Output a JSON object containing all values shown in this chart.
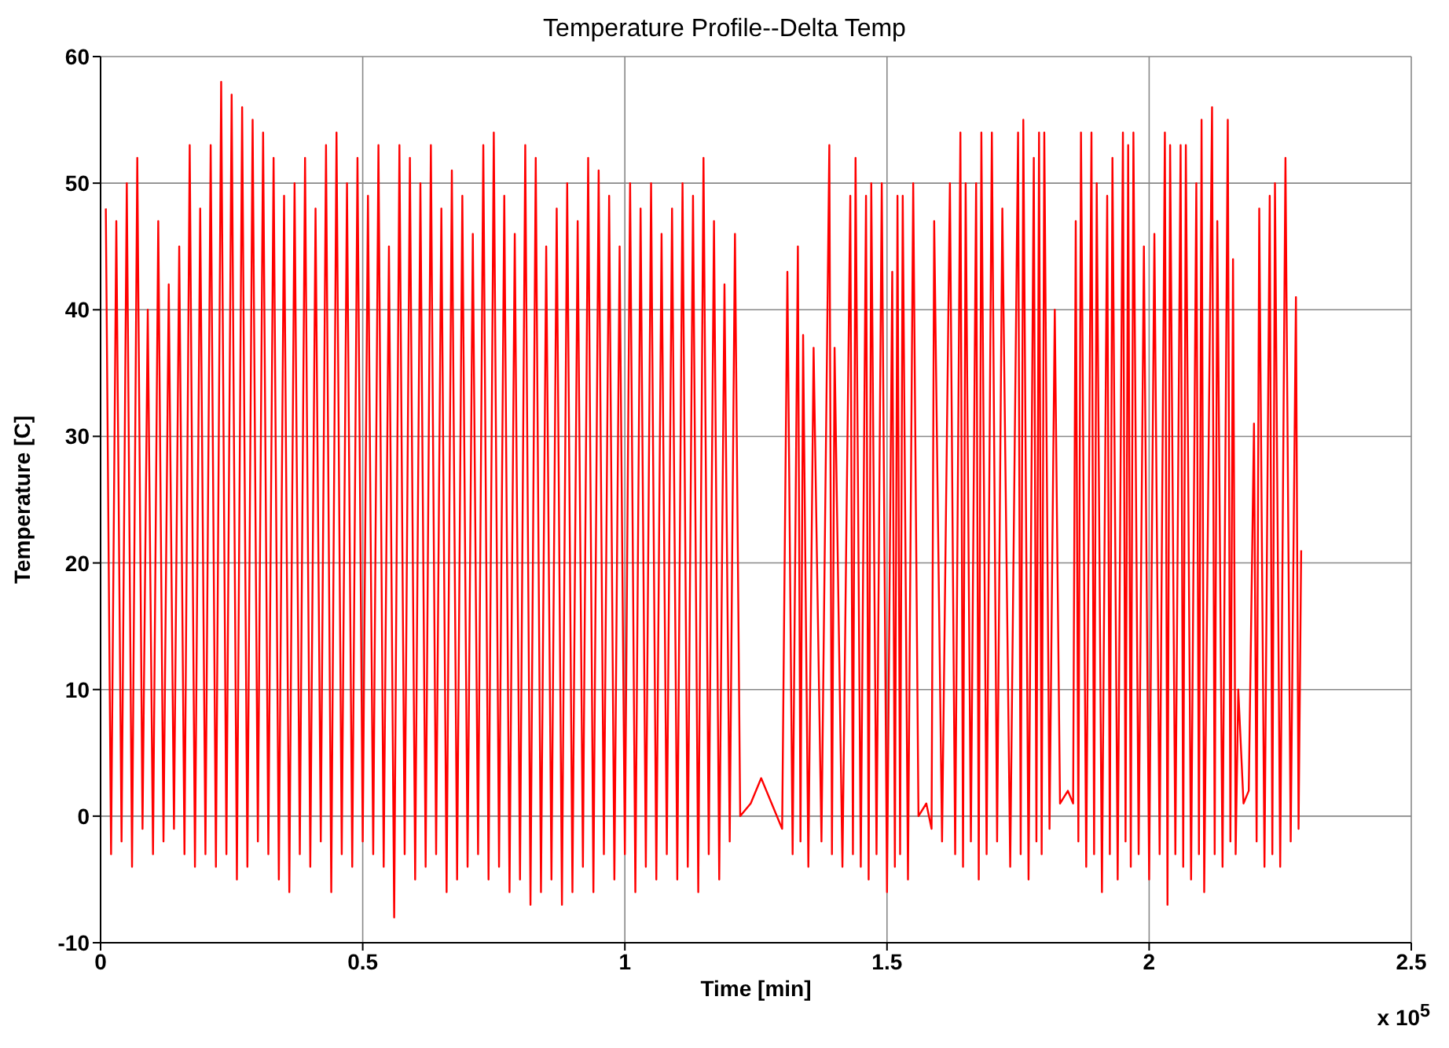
{
  "chart_data": {
    "type": "line",
    "title": "Temperature Profile--Delta Temp",
    "xlabel": "Time [min]",
    "ylabel": "Temperature [C]",
    "annotations": [
      "x 10$^{5}$"
    ],
    "xlim": [
      0,
      2.5
    ],
    "xticks": [
      0,
      0.5,
      1,
      1.5,
      2,
      2.5
    ],
    "ylim": [
      -10,
      60
    ],
    "yticks": [
      -10,
      0,
      10,
      20,
      30,
      40,
      50,
      60
    ],
    "grid": true,
    "marker": "none",
    "line_style": "solid",
    "series": [
      {
        "color": "#ff0000",
        "x": [
          0.01,
          0.02,
          0.03,
          0.04,
          0.05,
          0.06,
          0.07,
          0.08,
          0.09,
          0.1,
          0.11,
          0.12,
          0.13,
          0.14,
          0.15,
          0.16,
          0.17,
          0.18,
          0.19,
          0.2,
          0.21,
          0.22,
          0.23,
          0.24,
          0.25,
          0.26,
          0.27,
          0.28,
          0.29,
          0.3,
          0.31,
          0.32,
          0.33,
          0.34,
          0.35,
          0.36,
          0.37,
          0.38,
          0.39,
          0.4,
          0.41,
          0.42,
          0.43,
          0.44,
          0.45,
          0.46,
          0.47,
          0.48,
          0.49,
          0.5,
          0.51,
          0.52,
          0.53,
          0.54,
          0.55,
          0.56,
          0.57,
          0.58,
          0.59,
          0.6,
          0.61,
          0.62,
          0.63,
          0.64,
          0.65,
          0.66,
          0.67,
          0.68,
          0.69,
          0.7,
          0.71,
          0.72,
          0.73,
          0.74,
          0.75,
          0.76,
          0.77,
          0.78,
          0.79,
          0.8,
          0.81,
          0.82,
          0.83,
          0.84,
          0.85,
          0.86,
          0.87,
          0.88,
          0.89,
          0.9,
          0.91,
          0.92,
          0.93,
          0.94,
          0.95,
          0.96,
          0.97,
          0.98,
          0.99,
          1,
          1.01,
          1.02,
          1.03,
          1.04,
          1.05,
          1.06,
          1.07,
          1.08,
          1.09,
          1.1,
          1.11,
          1.12,
          1.13,
          1.14,
          1.15,
          1.16,
          1.17,
          1.18,
          1.19,
          1.2,
          1.21,
          1.22,
          1.24,
          1.26,
          1.28,
          1.3,
          1.31,
          1.32,
          1.33,
          1.335,
          1.34,
          1.35,
          1.36,
          1.375,
          1.39,
          1.395,
          1.4,
          1.415,
          1.43,
          1.435,
          1.44,
          1.45,
          1.46,
          1.465,
          1.47,
          1.48,
          1.49,
          1.5,
          1.51,
          1.515,
          1.52,
          1.525,
          1.53,
          1.54,
          1.55,
          1.56,
          1.575,
          1.585,
          1.59,
          1.605,
          1.62,
          1.63,
          1.64,
          1.645,
          1.65,
          1.66,
          1.67,
          1.675,
          1.68,
          1.69,
          1.7,
          1.71,
          1.72,
          1.735,
          1.75,
          1.755,
          1.76,
          1.77,
          1.78,
          1.785,
          1.79,
          1.795,
          1.8,
          1.81,
          1.82,
          1.83,
          1.845,
          1.855,
          1.86,
          1.865,
          1.87,
          1.88,
          1.89,
          1.895,
          1.9,
          1.91,
          1.92,
          1.925,
          1.93,
          1.94,
          1.95,
          1.955,
          1.96,
          1.965,
          1.97,
          1.98,
          1.99,
          2,
          2.01,
          2.02,
          2.03,
          2.035,
          2.04,
          2.05,
          2.06,
          2.065,
          2.07,
          2.08,
          2.09,
          2.095,
          2.1,
          2.105,
          2.12,
          2.125,
          2.13,
          2.14,
          2.15,
          2.155,
          2.16,
          2.165,
          2.17,
          2.18,
          2.19,
          2.2,
          2.205,
          2.21,
          2.22,
          2.23,
          2.235,
          2.24,
          2.25,
          2.26,
          2.27,
          2.28,
          2.285,
          2.29
        ],
        "values": [
          48,
          -3,
          47,
          -2,
          50,
          -4,
          52,
          -1,
          40,
          -3,
          47,
          -2,
          42,
          -1,
          45,
          -3,
          53,
          -4,
          48,
          -3,
          53,
          -4,
          58,
          -3,
          57,
          -5,
          56,
          -4,
          55,
          -2,
          54,
          -3,
          52,
          -5,
          49,
          -6,
          50,
          -3,
          52,
          -4,
          48,
          -2,
          53,
          -6,
          54,
          -3,
          50,
          -4,
          52,
          -2,
          49,
          -3,
          53,
          -4,
          45,
          -8,
          53,
          -3,
          52,
          -5,
          50,
          -4,
          53,
          -3,
          48,
          -6,
          51,
          -5,
          49,
          -4,
          46,
          -3,
          53,
          -5,
          54,
          -4,
          49,
          -6,
          46,
          -5,
          53,
          -7,
          52,
          -6,
          45,
          -5,
          48,
          -7,
          50,
          -6,
          47,
          -4,
          52,
          -6,
          51,
          -3,
          49,
          -5,
          45,
          -3,
          50,
          -6,
          48,
          -4,
          50,
          -5,
          46,
          -3,
          48,
          -5,
          50,
          -4,
          49,
          -6,
          52,
          -3,
          47,
          -5,
          42,
          -2,
          46,
          0,
          1,
          3,
          1,
          -1,
          43,
          -3,
          45,
          -2,
          38,
          -4,
          37,
          -2,
          53,
          -3,
          37,
          -4,
          49,
          -3,
          52,
          -4,
          49,
          -5,
          50,
          -3,
          50,
          -6,
          43,
          -4,
          49,
          -3,
          49,
          -5,
          50,
          0,
          1,
          -1,
          47,
          -2,
          50,
          -3,
          54,
          -4,
          50,
          -2,
          50,
          -5,
          54,
          -3,
          54,
          -2,
          48,
          -4,
          54,
          -3,
          55,
          -5,
          52,
          -2,
          54,
          -3,
          54,
          -1,
          40,
          1,
          2,
          1,
          47,
          -2,
          54,
          -4,
          54,
          -3,
          50,
          -6,
          49,
          -3,
          52,
          -5,
          54,
          -2,
          53,
          -4,
          54,
          -3,
          45,
          -5,
          46,
          -3,
          54,
          -7,
          53,
          -3,
          53,
          -4,
          53,
          -5,
          50,
          -3,
          55,
          -6,
          56,
          -3,
          47,
          -4,
          55,
          -2,
          44,
          -3,
          10,
          1,
          2,
          31,
          -2,
          48,
          -4,
          49,
          -3,
          50,
          -4,
          52,
          -2,
          41,
          -1,
          21
        ]
      }
    ]
  }
}
